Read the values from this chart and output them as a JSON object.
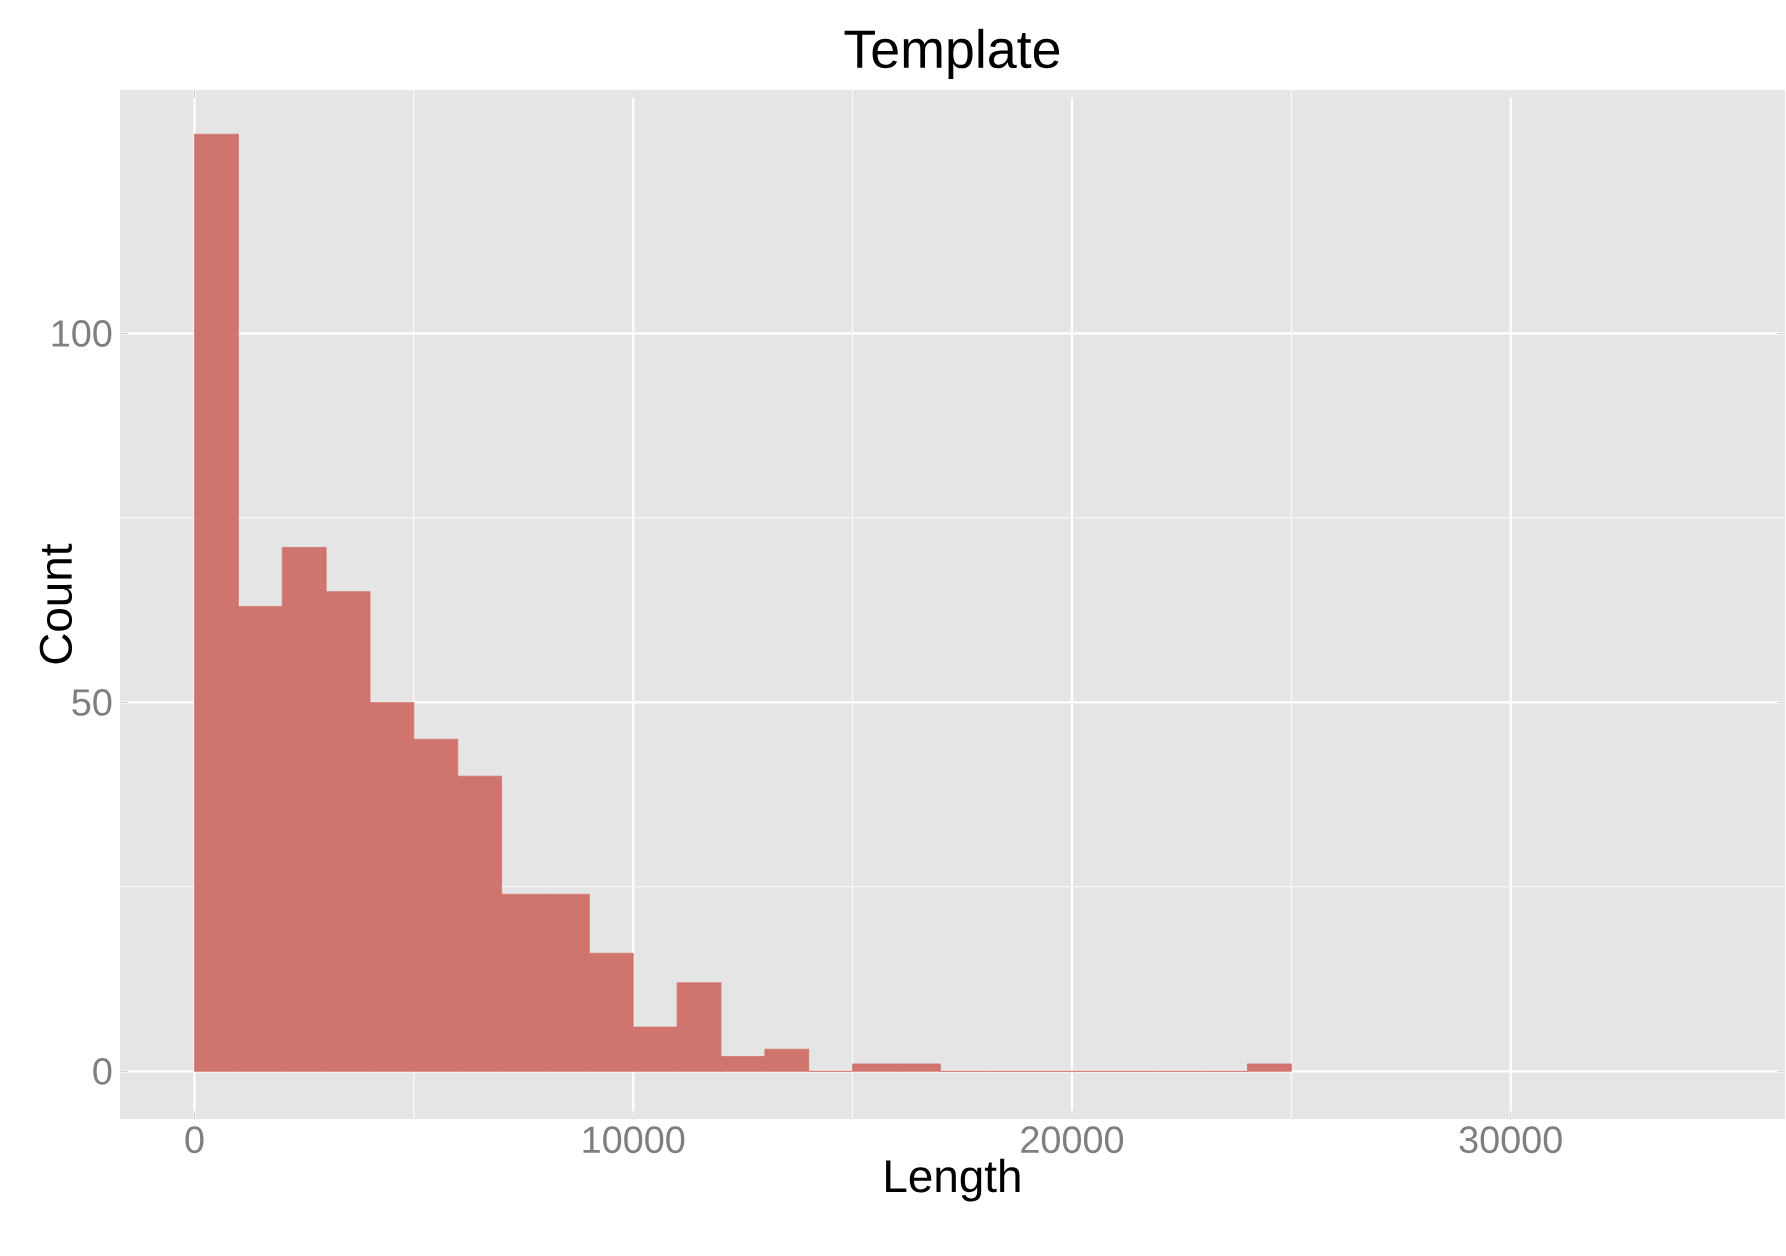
{
  "chart_data": {
    "type": "histogram",
    "title": "Template",
    "xlabel": "Length",
    "ylabel": "Count",
    "bins": [
      0,
      1000,
      2000,
      3000,
      4000,
      5000,
      6000,
      7000,
      8000,
      9000,
      10000,
      11000,
      12000,
      13000,
      14000,
      15000,
      16000,
      17000,
      18000,
      19000,
      20000,
      21000,
      22000,
      23000,
      24000,
      25000
    ],
    "values": [
      127,
      63,
      71,
      65,
      50,
      45,
      40,
      24,
      24,
      16,
      6,
      12,
      2,
      3,
      0,
      1,
      1,
      0,
      0,
      0,
      0,
      0,
      0,
      0,
      1
    ],
    "color": "#cf756d",
    "xlim": [
      -1700,
      36250
    ],
    "ylim": [
      -6.5,
      133
    ],
    "xticks": [
      0,
      10000,
      20000,
      30000
    ],
    "yticks": [
      0,
      50,
      100
    ],
    "grid": true
  }
}
